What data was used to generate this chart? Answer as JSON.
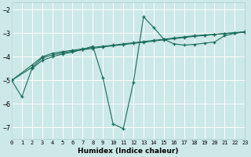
{
  "xlabel": "Humidex (Indice chaleur)",
  "background_color": "#cce8e8",
  "grid_color": "#b8d8d8",
  "line_color": "#1a6b5a",
  "xlim": [
    0,
    23
  ],
  "ylim": [
    -7.5,
    -1.7
  ],
  "yticks": [
    -7,
    -6,
    -5,
    -4,
    -3,
    -2
  ],
  "xticks": [
    0,
    1,
    2,
    3,
    4,
    5,
    6,
    7,
    8,
    9,
    10,
    11,
    12,
    13,
    14,
    15,
    16,
    17,
    18,
    19,
    20,
    21,
    22,
    23
  ],
  "series": [
    {
      "x": [
        0,
        2,
        3,
        4,
        5,
        6,
        7,
        8,
        9,
        10,
        11,
        12,
        13,
        14,
        15,
        16,
        17,
        18,
        19,
        20,
        21,
        22,
        23
      ],
      "y": [
        -5.0,
        -4.35,
        -4.0,
        -3.85,
        -3.78,
        -3.72,
        -3.66,
        -3.6,
        -3.55,
        -3.5,
        -3.45,
        -3.4,
        -3.35,
        -3.3,
        -3.25,
        -3.2,
        -3.15,
        -3.1,
        -3.07,
        -3.04,
        -3.01,
        -2.98,
        -2.95
      ]
    },
    {
      "x": [
        0,
        2,
        3,
        4,
        5,
        6,
        7,
        8,
        9,
        10,
        11,
        12,
        13,
        14,
        15,
        16,
        17,
        18,
        19,
        20,
        21,
        22,
        23
      ],
      "y": [
        -5.0,
        -4.45,
        -4.05,
        -3.92,
        -3.83,
        -3.76,
        -3.7,
        -3.64,
        -3.58,
        -3.53,
        -3.48,
        -3.43,
        -3.38,
        -3.33,
        -3.28,
        -3.23,
        -3.18,
        -3.13,
        -3.09,
        -3.05,
        -3.01,
        -2.97,
        -2.93
      ]
    },
    {
      "x": [
        0,
        1,
        2,
        3,
        4,
        5,
        6,
        7,
        8,
        9,
        10,
        11,
        12,
        13,
        14,
        15,
        16,
        17,
        18,
        19,
        20,
        21,
        22,
        23
      ],
      "y": [
        -5.0,
        -5.7,
        -4.5,
        -4.15,
        -4.0,
        -3.88,
        -3.8,
        -3.68,
        -3.55,
        -4.9,
        -6.85,
        -7.05,
        -5.1,
        -2.3,
        -2.75,
        -3.25,
        -3.45,
        -3.5,
        -3.47,
        -3.42,
        -3.37,
        -3.1,
        -3.0,
        -2.95
      ]
    }
  ]
}
